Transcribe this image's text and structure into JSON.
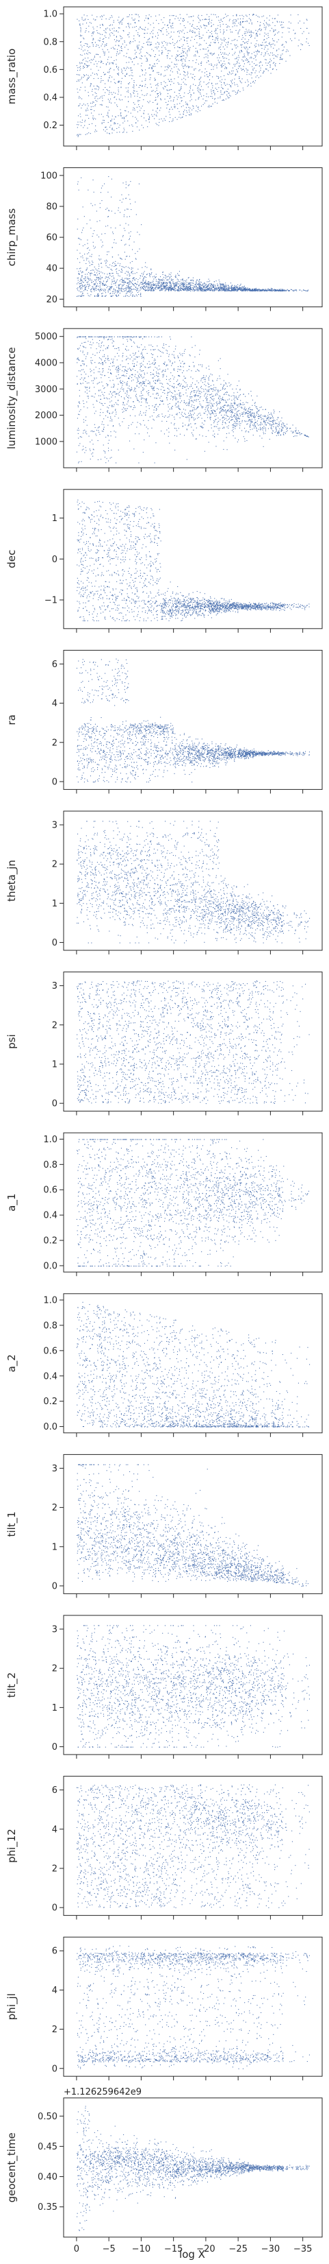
{
  "chart_data": {
    "type": "scatter",
    "title": "",
    "xlabel": "log X",
    "xlim": [
      2,
      -38
    ],
    "x_ticks": [
      0,
      -5,
      -10,
      -15,
      -20,
      -25,
      -30,
      -35
    ],
    "x_tick_labels": [
      "0",
      "−5",
      "−10",
      "−15",
      "−20",
      "−25",
      "−30",
      "−35"
    ],
    "point_color": "#4c72b0",
    "subplots": [
      {
        "ylabel": "mass_ratio",
        "ylim": [
          0.05,
          1.05
        ],
        "yticks": [
          0.2,
          0.4,
          0.6,
          0.8,
          1.0
        ],
        "ytick_labels": [
          "0.2",
          "0.4",
          "0.6",
          "0.8",
          "1.0"
        ]
      },
      {
        "ylabel": "chirp_mass",
        "ylim": [
          15,
          105
        ],
        "yticks": [
          20,
          40,
          60,
          80,
          100
        ],
        "ytick_labels": [
          "20",
          "40",
          "60",
          "80",
          "100"
        ]
      },
      {
        "ylabel": "luminosity_distance",
        "ylim": [
          0,
          5300
        ],
        "yticks": [
          1000,
          2000,
          3000,
          4000,
          5000
        ],
        "ytick_labels": [
          "1000",
          "2000",
          "3000",
          "4000",
          "5000"
        ]
      },
      {
        "ylabel": "dec",
        "ylim": [
          -1.7,
          1.7
        ],
        "yticks": [
          -1,
          0,
          1
        ],
        "ytick_labels": [
          "−1",
          "0",
          "1"
        ]
      },
      {
        "ylabel": "ra",
        "ylim": [
          -0.4,
          6.7
        ],
        "yticks": [
          0,
          2,
          4,
          6
        ],
        "ytick_labels": [
          "0",
          "2",
          "4",
          "6"
        ]
      },
      {
        "ylabel": "theta_jn",
        "ylim": [
          -0.2,
          3.35
        ],
        "yticks": [
          0,
          1,
          2,
          3
        ],
        "ytick_labels": [
          "0",
          "1",
          "2",
          "3"
        ]
      },
      {
        "ylabel": "psi",
        "ylim": [
          -0.2,
          3.35
        ],
        "yticks": [
          0,
          1,
          2,
          3
        ],
        "ytick_labels": [
          "0",
          "1",
          "2",
          "3"
        ]
      },
      {
        "ylabel": "a_1",
        "ylim": [
          -0.05,
          1.05
        ],
        "yticks": [
          0.0,
          0.2,
          0.4,
          0.6,
          0.8,
          1.0
        ],
        "ytick_labels": [
          "0.0",
          "0.2",
          "0.4",
          "0.6",
          "0.8",
          "1.0"
        ]
      },
      {
        "ylabel": "a_2",
        "ylim": [
          -0.05,
          1.05
        ],
        "yticks": [
          0.0,
          0.2,
          0.4,
          0.6,
          0.8,
          1.0
        ],
        "ytick_labels": [
          "0.0",
          "0.2",
          "0.4",
          "0.6",
          "0.8",
          "1.0"
        ]
      },
      {
        "ylabel": "tilt_1",
        "ylim": [
          -0.2,
          3.35
        ],
        "yticks": [
          0,
          1,
          2,
          3
        ],
        "ytick_labels": [
          "0",
          "1",
          "2",
          "3"
        ]
      },
      {
        "ylabel": "tilt_2",
        "ylim": [
          -0.2,
          3.35
        ],
        "yticks": [
          0,
          1,
          2,
          3
        ],
        "ytick_labels": [
          "0",
          "1",
          "2",
          "3"
        ]
      },
      {
        "ylabel": "phi_12",
        "ylim": [
          -0.4,
          6.7
        ],
        "yticks": [
          0,
          2,
          4,
          6
        ],
        "ytick_labels": [
          "0",
          "2",
          "4",
          "6"
        ]
      },
      {
        "ylabel": "phi_jl",
        "ylim": [
          -0.4,
          6.7
        ],
        "yticks": [
          0,
          2,
          4,
          6
        ],
        "ytick_labels": [
          "0",
          "2",
          "4",
          "6"
        ]
      },
      {
        "ylabel": "geocent_time",
        "ylim": [
          0.3,
          0.53
        ],
        "yticks": [
          0.35,
          0.4,
          0.45,
          0.5
        ],
        "ytick_labels": [
          "0.35",
          "0.40",
          "0.45",
          "0.50"
        ],
        "offset_text": "+1.126259642e9"
      }
    ]
  }
}
